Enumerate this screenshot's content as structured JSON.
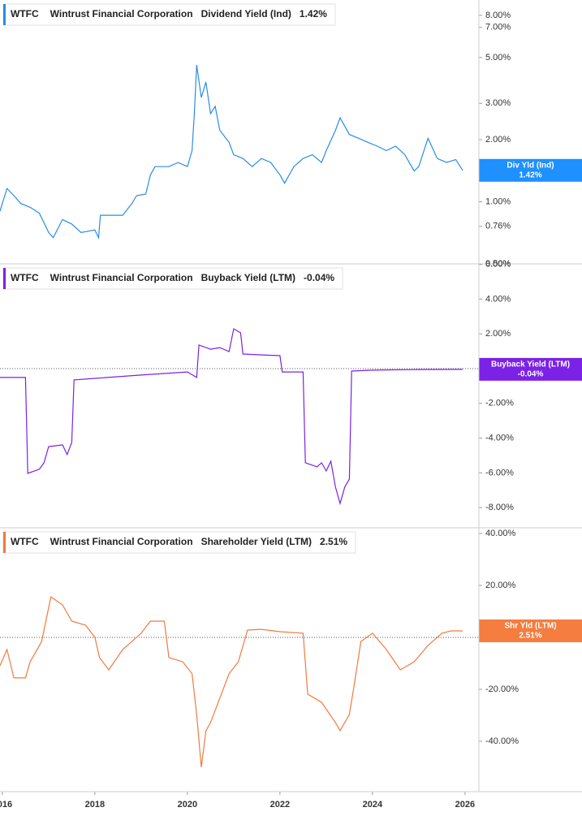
{
  "chart_data": [
    {
      "type": "line",
      "ticker": "WTFC",
      "company": "Wintrust Financial Corporation",
      "metric": "Dividend Yield (Ind)",
      "last_value": 1.42,
      "last_label": "1.42%",
      "badge_label": "Div Yld (Ind)",
      "color": "#2a8ce6",
      "badge_color": "#1e90ff",
      "log": true,
      "zero_line": false,
      "xlim": [
        2015.95,
        2026.3
      ],
      "ylim": [
        0.5,
        9.5
      ],
      "yticks": [
        {
          "value": 8,
          "label": "8.00%"
        },
        {
          "value": 7,
          "label": "7.00%"
        },
        {
          "value": 5,
          "label": "5.00%"
        },
        {
          "value": 3,
          "label": "3.00%"
        },
        {
          "value": 2,
          "label": "2.00%"
        },
        {
          "value": 1,
          "label": "1.00%"
        },
        {
          "value": 0.76,
          "label": "0.76%"
        },
        {
          "value": 0.5,
          "label": "0.50%"
        }
      ],
      "x": [
        2015.95,
        2016.1,
        2016.25,
        2016.4,
        2016.6,
        2016.8,
        2017.0,
        2017.1,
        2017.3,
        2017.5,
        2017.7,
        2018.0,
        2018.08,
        2018.12,
        2018.6,
        2018.8,
        2018.9,
        2019.1,
        2019.2,
        2019.3,
        2019.6,
        2019.8,
        2020.0,
        2020.1,
        2020.15,
        2020.2,
        2020.3,
        2020.4,
        2020.5,
        2020.6,
        2020.7,
        2020.9,
        2021.0,
        2021.2,
        2021.4,
        2021.6,
        2021.8,
        2022.0,
        2022.1,
        2022.3,
        2022.5,
        2022.7,
        2022.9,
        2023.0,
        2023.2,
        2023.3,
        2023.5,
        2023.7,
        2023.9,
        2024.1,
        2024.3,
        2024.5,
        2024.7,
        2024.9,
        2025.0,
        2025.2,
        2025.4,
        2025.6,
        2025.8,
        2025.95
      ],
      "values": [
        0.9,
        1.16,
        1.07,
        0.98,
        0.94,
        0.88,
        0.71,
        0.67,
        0.82,
        0.78,
        0.71,
        0.73,
        0.67,
        0.86,
        0.86,
        0.98,
        1.07,
        1.09,
        1.35,
        1.48,
        1.48,
        1.55,
        1.48,
        1.77,
        2.67,
        4.6,
        3.2,
        3.8,
        2.67,
        2.9,
        2.22,
        1.94,
        1.69,
        1.62,
        1.48,
        1.62,
        1.55,
        1.35,
        1.23,
        1.48,
        1.62,
        1.69,
        1.55,
        1.77,
        2.22,
        2.55,
        2.12,
        2.03,
        1.94,
        1.86,
        1.77,
        1.86,
        1.69,
        1.41,
        1.48,
        2.03,
        1.62,
        1.55,
        1.6,
        1.42
      ]
    },
    {
      "type": "line",
      "ticker": "WTFC",
      "company": "Wintrust Financial Corporation",
      "metric": "Buyback Yield (LTM)",
      "last_value": -0.04,
      "last_label": "-0.04%",
      "badge_label": "Buyback Yield (LTM)",
      "color": "#7b22e6",
      "badge_color": "#7b22e6",
      "log": false,
      "zero_line": true,
      "xlim": [
        2015.95,
        2026.3
      ],
      "ylim": [
        -9.16,
        6.03
      ],
      "yticks": [
        {
          "value": 6,
          "label": "6.00%"
        },
        {
          "value": 4,
          "label": "4.00%"
        },
        {
          "value": 2,
          "label": "2.00%"
        },
        {
          "value": -2,
          "label": "-2.00%"
        },
        {
          "value": -4,
          "label": "-4.00%"
        },
        {
          "value": -6,
          "label": "-6.00%"
        },
        {
          "value": -8,
          "label": "-8.00%"
        }
      ],
      "x": [
        2015.95,
        2016.5,
        2016.55,
        2016.8,
        2016.9,
        2017.0,
        2017.3,
        2017.4,
        2017.5,
        2017.55,
        2018.0,
        2019.0,
        2020.0,
        2020.2,
        2020.25,
        2020.5,
        2020.7,
        2020.9,
        2021.0,
        2021.15,
        2021.2,
        2021.6,
        2022.0,
        2022.05,
        2022.5,
        2022.55,
        2022.8,
        2022.9,
        2023.0,
        2023.1,
        2023.2,
        2023.3,
        2023.4,
        2023.5,
        2023.55,
        2024.0,
        2025.0,
        2025.95
      ],
      "values": [
        -0.51,
        -0.51,
        -6.03,
        -5.79,
        -5.42,
        -4.49,
        -4.39,
        -4.95,
        -4.25,
        -0.65,
        -0.56,
        -0.37,
        -0.19,
        -0.51,
        1.36,
        1.12,
        1.21,
        0.98,
        2.29,
        2.06,
        0.84,
        0.79,
        0.75,
        -0.19,
        -0.19,
        -5.42,
        -5.65,
        -5.42,
        -5.89,
        -5.33,
        -6.82,
        -7.76,
        -6.82,
        -6.36,
        -0.14,
        -0.09,
        -0.05,
        -0.04
      ]
    },
    {
      "type": "line",
      "ticker": "WTFC",
      "company": "Wintrust Financial Corporation",
      "metric": "Shareholder Yield (LTM)",
      "last_value": 2.51,
      "last_label": "2.51%",
      "badge_label": "Shr Yld (LTM)",
      "color": "#f07a3e",
      "badge_color": "#f47d3f",
      "log": false,
      "zero_line": true,
      "xlim": [
        2015.95,
        2026.3
      ],
      "ylim": [
        -59.4,
        42.2
      ],
      "yticks": [
        {
          "value": 40,
          "label": "40.00%"
        },
        {
          "value": 20,
          "label": "20.00%"
        },
        {
          "value": 0,
          "label": "0.00%"
        },
        {
          "value": -20,
          "label": "-20.00%"
        },
        {
          "value": -40,
          "label": "-40.00%"
        }
      ],
      "xticks": [
        2016,
        2018,
        2020,
        2022,
        2024,
        2026
      ],
      "x": [
        2015.95,
        2016.1,
        2016.25,
        2016.5,
        2016.6,
        2016.85,
        2017.05,
        2017.3,
        2017.5,
        2017.8,
        2018.0,
        2018.1,
        2018.3,
        2018.6,
        2018.8,
        2019.0,
        2019.2,
        2019.5,
        2019.6,
        2019.9,
        2020.1,
        2020.2,
        2020.3,
        2020.4,
        2020.5,
        2020.7,
        2020.9,
        2021.1,
        2021.3,
        2021.6,
        2022.0,
        2022.5,
        2022.6,
        2022.9,
        2023.2,
        2023.3,
        2023.5,
        2023.6,
        2023.75,
        2024.0,
        2024.3,
        2024.6,
        2024.9,
        2025.2,
        2025.5,
        2025.7,
        2025.95
      ],
      "values": [
        -10.9,
        -4.7,
        -15.6,
        -15.6,
        -9.4,
        -1.6,
        15.6,
        12.5,
        6.25,
        4.7,
        0,
        -7.8,
        -12.5,
        -4.7,
        -1.6,
        1.6,
        6.25,
        6.25,
        -7.8,
        -9.4,
        -14.0,
        -29.7,
        -50.0,
        -36.0,
        -32.8,
        -23.4,
        -14.0,
        -9.4,
        2.8,
        3.1,
        2.2,
        1.6,
        -21.9,
        -25.0,
        -32.8,
        -35.9,
        -29.7,
        -18.8,
        -1.6,
        1.6,
        -4.7,
        -12.5,
        -9.4,
        -3.1,
        1.6,
        2.5,
        2.51
      ]
    }
  ]
}
